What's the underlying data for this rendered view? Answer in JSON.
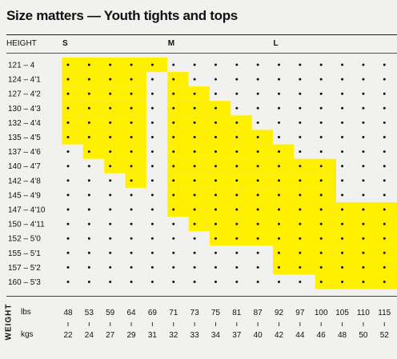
{
  "title": "Size matters — Youth tights and tops",
  "header": {
    "height_label": "HEIGHT",
    "weight_label": "WEIGHT",
    "lbs_label": "lbs",
    "kgs_label": "kgs"
  },
  "sizes": [
    {
      "label": "S",
      "start_col": 0
    },
    {
      "label": "M",
      "start_col": 5
    },
    {
      "label": "L",
      "start_col": 10
    }
  ],
  "colors": {
    "highlight": "#fff000",
    "background": "#f1f1ef",
    "dot": "#111111"
  },
  "chart_data": {
    "type": "heatmap",
    "title": "Size matters — Youth tights and tops",
    "ylabel": "HEIGHT",
    "xlabel": "WEIGHT",
    "heights": [
      "121 – 4",
      "124 – 4'1",
      "127 – 4'2",
      "130 – 4'3",
      "132 – 4'4",
      "135 – 4'5",
      "137 – 4'6",
      "140 – 4'7",
      "142 – 4'8",
      "145 – 4'9",
      "147 – 4'10",
      "150 – 4'11",
      "152 – 5'0",
      "155 – 5'1",
      "157 – 5'2",
      "160 – 5'3"
    ],
    "weights_lbs": [
      "48",
      "53",
      "59",
      "64",
      "69",
      "71",
      "73",
      "75",
      "81",
      "87",
      "92",
      "97",
      "100",
      "105",
      "110",
      "115"
    ],
    "weights_kgs": [
      "22",
      "24",
      "27",
      "29",
      "31",
      "32",
      "33",
      "34",
      "37",
      "40",
      "42",
      "44",
      "46",
      "48",
      "50",
      "52"
    ],
    "highlight_ranges": [
      [
        [
          0,
          4
        ]
      ],
      [
        [
          0,
          3
        ],
        [
          5,
          5
        ]
      ],
      [
        [
          0,
          3
        ],
        [
          5,
          6
        ]
      ],
      [
        [
          0,
          3
        ],
        [
          5,
          7
        ]
      ],
      [
        [
          0,
          3
        ],
        [
          5,
          8
        ]
      ],
      [
        [
          0,
          3
        ],
        [
          5,
          9
        ]
      ],
      [
        [
          1,
          3
        ],
        [
          5,
          9
        ],
        [
          10,
          10
        ]
      ],
      [
        [
          2,
          3
        ],
        [
          5,
          9
        ],
        [
          10,
          12
        ]
      ],
      [
        [
          3,
          3
        ],
        [
          5,
          9
        ],
        [
          10,
          12
        ]
      ],
      [
        [
          5,
          9
        ],
        [
          10,
          12
        ]
      ],
      [
        [
          5,
          9
        ],
        [
          10,
          15
        ]
      ],
      [
        [
          6,
          9
        ],
        [
          10,
          15
        ]
      ],
      [
        [
          7,
          9
        ],
        [
          10,
          15
        ]
      ],
      [
        [
          10,
          15
        ]
      ],
      [
        [
          10,
          15
        ]
      ],
      [
        [
          12,
          15
        ]
      ]
    ]
  }
}
